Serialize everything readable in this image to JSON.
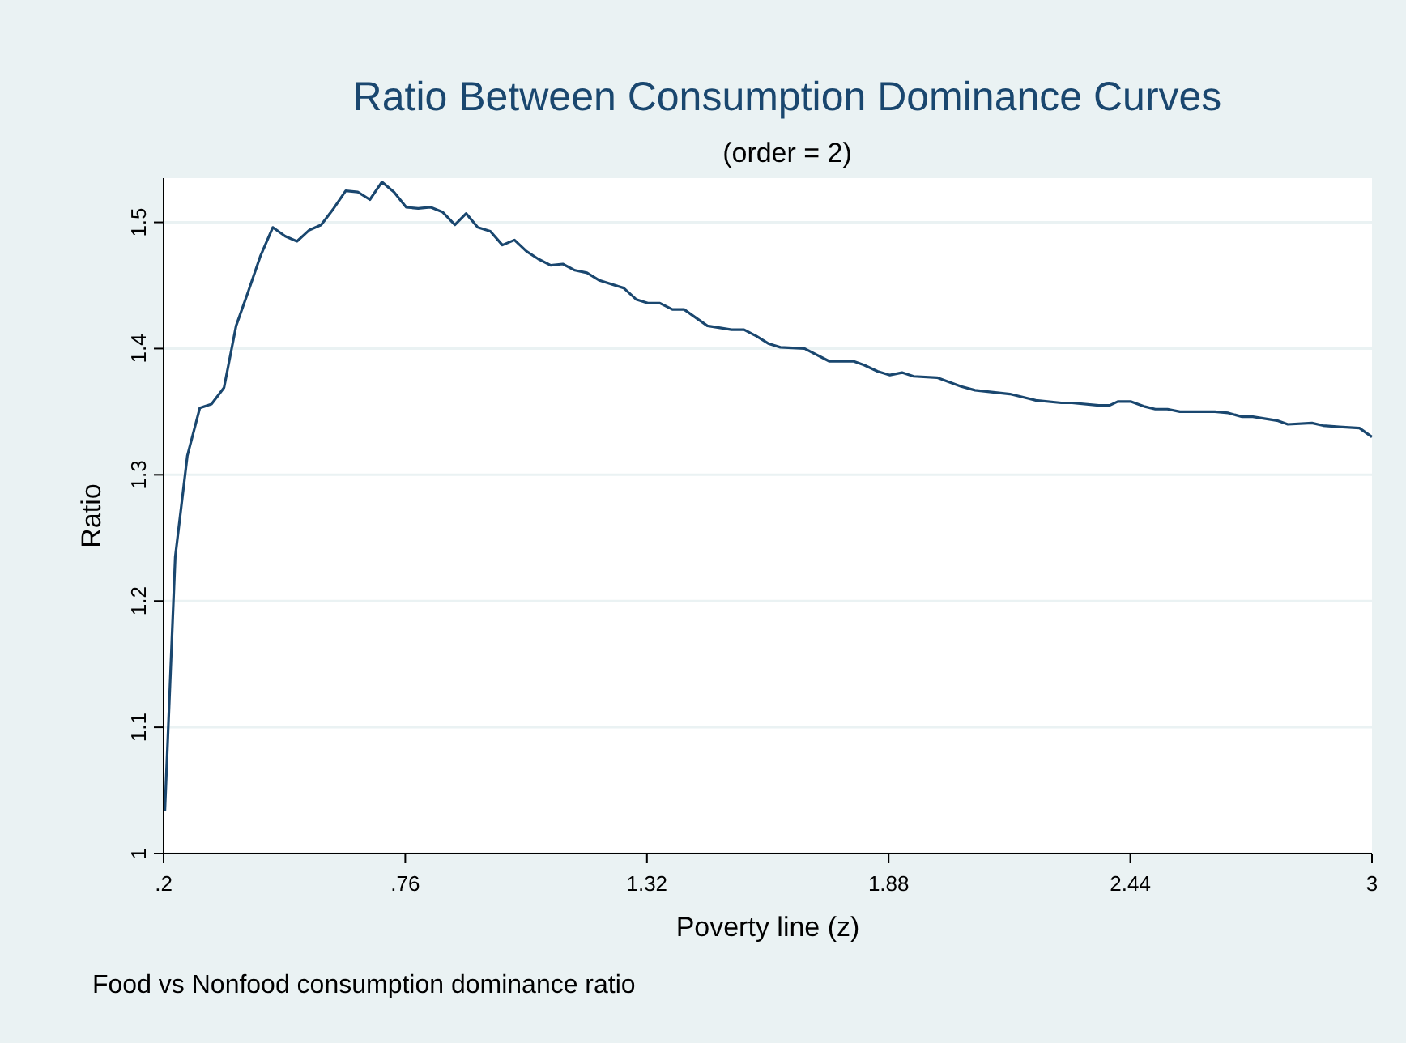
{
  "chart_data": {
    "type": "line",
    "title": "Ratio Between Consumption Dominance Curves",
    "subtitle": "(order = 2)",
    "xlabel": "Poverty line (z)",
    "ylabel": "Ratio",
    "annotations": [
      "Food vs Nonfood consumption dominance ratio"
    ],
    "xlim": [
      0.2,
      3
    ],
    "xticks": [
      {
        "value": 0.2,
        "label": ".2"
      },
      {
        "value": 0.76,
        "label": ".76"
      },
      1.32,
      1.88,
      2.44,
      3
    ],
    "ylim": [
      1,
      1.535
    ],
    "yticks": [
      1,
      1.1,
      1.2,
      1.3,
      1.4,
      1.5
    ],
    "grid": "y",
    "marker": "none",
    "line_style": "solid",
    "series": [
      {
        "color": "#1a476f",
        "x": [
          0.203,
          0.227,
          0.255,
          0.284,
          0.311,
          0.34,
          0.368,
          0.396,
          0.424,
          0.453,
          0.482,
          0.509,
          0.538,
          0.565,
          0.594,
          0.622,
          0.65,
          0.678,
          0.706,
          0.734,
          0.762,
          0.79,
          0.818,
          0.847,
          0.875,
          0.901,
          0.928,
          0.957,
          0.985,
          1.013,
          1.041,
          1.068,
          1.097,
          1.125,
          1.153,
          1.181,
          1.21,
          1.266,
          1.295,
          1.322,
          1.35,
          1.379,
          1.406,
          1.46,
          1.516,
          1.545,
          1.573,
          1.601,
          1.629,
          1.685,
          1.742,
          1.798,
          1.823,
          1.854,
          1.883,
          1.911,
          1.938,
          1.992,
          2.048,
          2.08,
          2.161,
          2.221,
          2.28,
          2.305,
          2.367,
          2.392,
          2.411,
          2.442,
          2.474,
          2.498,
          2.526,
          2.555,
          2.636,
          2.667,
          2.699,
          2.724,
          2.78,
          2.805,
          2.861,
          2.887,
          2.924,
          2.971,
          3.0
        ],
        "values": [
          1.034,
          1.235,
          1.315,
          1.353,
          1.356,
          1.369,
          1.418,
          1.445,
          1.473,
          1.496,
          1.489,
          1.485,
          1.494,
          1.498,
          1.511,
          1.525,
          1.524,
          1.518,
          1.532,
          1.524,
          1.512,
          1.511,
          1.512,
          1.508,
          1.498,
          1.507,
          1.496,
          1.493,
          1.482,
          1.486,
          1.477,
          1.471,
          1.466,
          1.467,
          1.462,
          1.46,
          1.454,
          1.448,
          1.439,
          1.436,
          1.436,
          1.431,
          1.431,
          1.418,
          1.415,
          1.415,
          1.41,
          1.404,
          1.401,
          1.4,
          1.39,
          1.39,
          1.387,
          1.382,
          1.379,
          1.381,
          1.378,
          1.377,
          1.37,
          1.367,
          1.364,
          1.359,
          1.357,
          1.357,
          1.355,
          1.355,
          1.358,
          1.358,
          1.354,
          1.352,
          1.352,
          1.35,
          1.35,
          1.349,
          1.346,
          1.346,
          1.343,
          1.34,
          1.341,
          1.339,
          1.338,
          1.337,
          1.33
        ]
      }
    ]
  }
}
